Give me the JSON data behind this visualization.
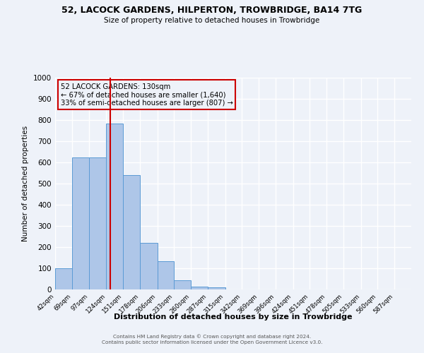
{
  "title": "52, LACOCK GARDENS, HILPERTON, TROWBRIDGE, BA14 7TG",
  "subtitle": "Size of property relative to detached houses in Trowbridge",
  "xlabel": "Distribution of detached houses by size in Trowbridge",
  "ylabel": "Number of detached properties",
  "bin_labels": [
    "42sqm",
    "69sqm",
    "97sqm",
    "124sqm",
    "151sqm",
    "178sqm",
    "206sqm",
    "233sqm",
    "260sqm",
    "287sqm",
    "315sqm",
    "342sqm",
    "369sqm",
    "396sqm",
    "424sqm",
    "451sqm",
    "478sqm",
    "505sqm",
    "533sqm",
    "560sqm",
    "587sqm"
  ],
  "bin_edges": [
    42,
    69,
    97,
    124,
    151,
    178,
    206,
    233,
    260,
    287,
    315,
    342,
    369,
    396,
    424,
    451,
    478,
    505,
    533,
    560,
    587,
    614
  ],
  "bar_heights": [
    100,
    622,
    622,
    785,
    540,
    220,
    133,
    43,
    15,
    10,
    0,
    0,
    0,
    0,
    0,
    0,
    0,
    0,
    0,
    0,
    0
  ],
  "bar_color": "#aec6e8",
  "bar_edge_color": "#5b9bd5",
  "vline_color": "#cc0000",
  "vline_x": 130,
  "annotation_title": "52 LACOCK GARDENS: 130sqm",
  "annotation_line1": "← 67% of detached houses are smaller (1,640)",
  "annotation_line2": "33% of semi-detached houses are larger (807) →",
  "annotation_box_color": "#cc0000",
  "ylim": [
    0,
    1000
  ],
  "yticks": [
    0,
    100,
    200,
    300,
    400,
    500,
    600,
    700,
    800,
    900,
    1000
  ],
  "background_color": "#eef2f9",
  "grid_color": "#ffffff",
  "footer_line1": "Contains HM Land Registry data © Crown copyright and database right 2024.",
  "footer_line2": "Contains public sector information licensed under the Open Government Licence v3.0."
}
